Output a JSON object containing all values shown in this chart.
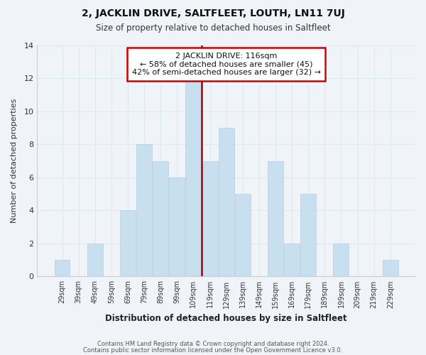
{
  "title": "2, JACKLIN DRIVE, SALTFLEET, LOUTH, LN11 7UJ",
  "subtitle": "Size of property relative to detached houses in Saltfleet",
  "xlabel": "Distribution of detached houses by size in Saltfleet",
  "ylabel": "Number of detached properties",
  "bar_color": "#c8dff0",
  "bar_edge_color": "#b8cfe0",
  "categories": [
    "29sqm",
    "39sqm",
    "49sqm",
    "59sqm",
    "69sqm",
    "79sqm",
    "89sqm",
    "99sqm",
    "109sqm",
    "119sqm",
    "129sqm",
    "139sqm",
    "149sqm",
    "159sqm",
    "169sqm",
    "179sqm",
    "189sqm",
    "199sqm",
    "209sqm",
    "219sqm",
    "229sqm"
  ],
  "values": [
    1,
    0,
    2,
    0,
    4,
    8,
    7,
    6,
    12,
    7,
    9,
    5,
    0,
    7,
    2,
    5,
    0,
    2,
    0,
    0,
    1
  ],
  "ylim": [
    0,
    14
  ],
  "yticks": [
    0,
    2,
    4,
    6,
    8,
    10,
    12,
    14
  ],
  "annotation_title": "2 JACKLIN DRIVE: 116sqm",
  "annotation_line1": "← 58% of detached houses are smaller (45)",
  "annotation_line2": "42% of semi-detached houses are larger (32) →",
  "annotation_box_color": "#ffffff",
  "annotation_box_edge_color": "#cc0000",
  "marker_line_color": "#aa0000",
  "grid_color": "#dde8f0",
  "background_color": "#f0f4f8",
  "footer1": "Contains HM Land Registry data © Crown copyright and database right 2024.",
  "footer2": "Contains public sector information licensed under the Open Government Licence v3.0."
}
